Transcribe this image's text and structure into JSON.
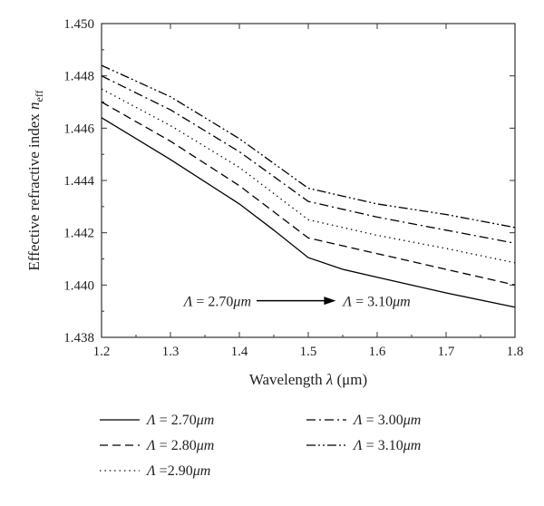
{
  "chart_data": {
    "type": "line",
    "xlabel": {
      "pre": "Wavelength ",
      "var": "λ",
      "post": " (μm)"
    },
    "ylabel": {
      "pre": "Effective refractive index ",
      "var": "n",
      "sub": "eff"
    },
    "xlim": [
      1.2,
      1.8
    ],
    "ylim": [
      1.438,
      1.45
    ],
    "xticks": [
      1.2,
      1.3,
      1.4,
      1.5,
      1.6,
      1.7,
      1.8
    ],
    "xtick_labels": [
      "1.2",
      "1.3",
      "1.4",
      "1.5",
      "1.6",
      "1.7",
      "1.8"
    ],
    "yticks": [
      1.438,
      1.44,
      1.442,
      1.444,
      1.446,
      1.448,
      1.45
    ],
    "ytick_labels": [
      "1.438",
      "1.440",
      "1.442",
      "1.444",
      "1.446",
      "1.448",
      "1.450"
    ],
    "grid": false,
    "legend_position": "below",
    "annotation": {
      "from_symbol": "Λ",
      "from_value": " = 2.70",
      "from_unit": "μm",
      "to_symbol": "Λ",
      "to_value": " = 3.10",
      "to_unit": "μm",
      "arrow_from": [
        1.425,
        1.4394
      ],
      "arrow_to": [
        1.54,
        1.4394
      ]
    },
    "series": [
      {
        "symbol": "Λ",
        "value_text": " = 2.70",
        "unit": "μm",
        "dash": "solid",
        "color": "#000000",
        "points": [
          [
            1.2,
            1.4464
          ],
          [
            1.3,
            1.4448
          ],
          [
            1.4,
            1.4431
          ],
          [
            1.45,
            1.4421
          ],
          [
            1.5,
            1.44105
          ],
          [
            1.55,
            1.4406
          ],
          [
            1.6,
            1.4403
          ],
          [
            1.7,
            1.4397
          ],
          [
            1.8,
            1.43915
          ]
        ]
      },
      {
        "symbol": "Λ",
        "value_text": " = 2.80",
        "unit": "μm",
        "dash": "dashed",
        "color": "#000000",
        "points": [
          [
            1.2,
            1.447
          ],
          [
            1.3,
            1.4455
          ],
          [
            1.4,
            1.4438
          ],
          [
            1.5,
            1.4418
          ],
          [
            1.6,
            1.4412
          ],
          [
            1.7,
            1.4406
          ],
          [
            1.8,
            1.44
          ]
        ]
      },
      {
        "symbol": "Λ",
        "value_text": " =2.90",
        "unit": "μm",
        "dash": "dotted",
        "color": "#000000",
        "points": [
          [
            1.2,
            1.4475
          ],
          [
            1.3,
            1.4461
          ],
          [
            1.4,
            1.4445
          ],
          [
            1.5,
            1.4425
          ],
          [
            1.6,
            1.4419
          ],
          [
            1.7,
            1.4414
          ],
          [
            1.8,
            1.44085
          ]
        ]
      },
      {
        "symbol": "Λ",
        "value_text": " = 3.00",
        "unit": "μm",
        "dash": "dashdot",
        "color": "#000000",
        "points": [
          [
            1.2,
            1.448
          ],
          [
            1.3,
            1.4467
          ],
          [
            1.4,
            1.4451
          ],
          [
            1.5,
            1.4432
          ],
          [
            1.6,
            1.4426
          ],
          [
            1.7,
            1.4421
          ],
          [
            1.8,
            1.4416
          ]
        ]
      },
      {
        "symbol": "Λ",
        "value_text": " = 3.10",
        "unit": "μm",
        "dash": "dashdotdot",
        "color": "#000000",
        "points": [
          [
            1.2,
            1.4484
          ],
          [
            1.3,
            1.4472
          ],
          [
            1.4,
            1.4456
          ],
          [
            1.5,
            1.4437
          ],
          [
            1.6,
            1.4431
          ],
          [
            1.7,
            1.4427
          ],
          [
            1.8,
            1.4422
          ]
        ]
      }
    ]
  }
}
